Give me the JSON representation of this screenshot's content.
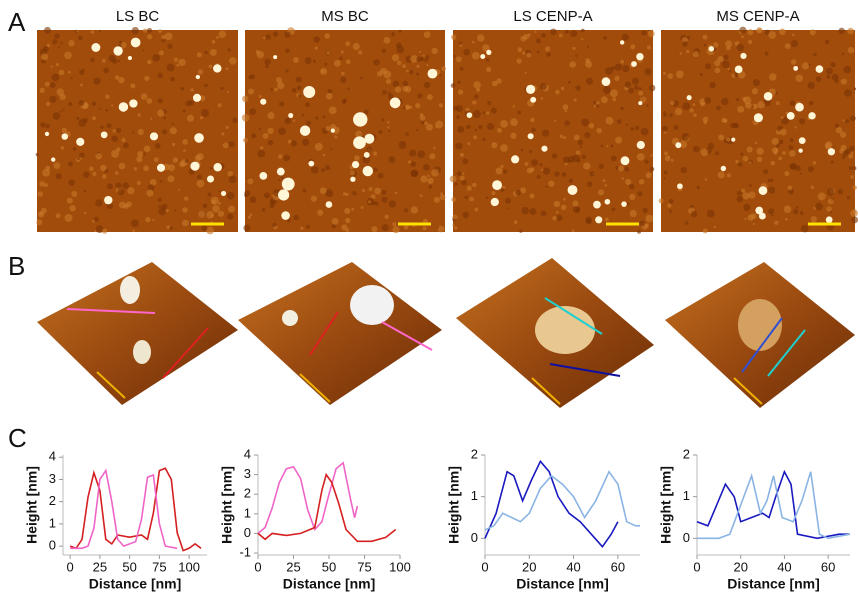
{
  "panel_labels": [
    "A",
    "B",
    "C"
  ],
  "image_titles": [
    "LS BC",
    "MS BC",
    "LS CENP-A",
    "MS CENP-A"
  ],
  "chart_data": [
    {
      "type": "line",
      "xlabel": "Distance [nm]",
      "ylabel": "Height [nm]",
      "xlim": [
        -6,
        115
      ],
      "ylim": [
        -0.4,
        4.1
      ],
      "xticks": [
        0,
        25,
        50,
        75,
        100
      ],
      "yticks": [
        0,
        1,
        2,
        3,
        4
      ],
      "series": [
        {
          "color": "#d42020",
          "x": [
            0,
            5,
            10,
            15,
            20,
            25,
            30,
            35,
            40,
            50,
            60,
            65,
            70,
            75,
            80,
            85,
            90,
            95,
            100,
            105,
            110
          ],
          "values": [
            0,
            -0.1,
            0.3,
            2.2,
            3.3,
            2.5,
            0.3,
            0.1,
            0.5,
            0.4,
            0.5,
            0.3,
            1.5,
            3.4,
            3.5,
            3.0,
            0.6,
            -0.2,
            -0.1,
            0.1,
            -0.1
          ]
        },
        {
          "color": "#f064c8",
          "x": [
            0,
            10,
            15,
            20,
            25,
            30,
            35,
            40,
            45,
            50,
            55,
            60,
            65,
            70,
            75,
            80,
            90
          ],
          "values": [
            -0.1,
            -0.1,
            0,
            0.8,
            3.0,
            3.4,
            2.0,
            0.3,
            0,
            0.1,
            0.2,
            1.2,
            3.1,
            3.2,
            1.0,
            0,
            -0.1
          ]
        }
      ]
    },
    {
      "type": "line",
      "xlabel": "Distance [nm]",
      "ylabel": "Height [nm]",
      "xlim": [
        0,
        100
      ],
      "ylim": [
        -1.1,
        4
      ],
      "xticks": [
        0,
        25,
        50,
        75,
        100
      ],
      "yticks": [
        -1,
        0,
        1,
        2,
        3,
        4
      ],
      "series": [
        {
          "color": "#f064c8",
          "x": [
            0,
            5,
            10,
            15,
            20,
            25,
            30,
            35,
            40,
            45,
            50,
            55,
            60,
            65,
            68,
            70
          ],
          "values": [
            0,
            0.3,
            1.3,
            2.6,
            3.3,
            3.4,
            2.8,
            1.2,
            0.2,
            0.6,
            2.0,
            3.3,
            3.6,
            1.8,
            0.8,
            1.4
          ]
        },
        {
          "color": "#d42020",
          "x": [
            0,
            5,
            10,
            20,
            30,
            40,
            45,
            48,
            52,
            57,
            62,
            70,
            80,
            90,
            97
          ],
          "values": [
            0,
            -0.3,
            0,
            -0.1,
            0,
            0.3,
            2.2,
            3.0,
            2.6,
            1.5,
            0.2,
            -0.4,
            -0.4,
            -0.2,
            0.2
          ]
        }
      ]
    },
    {
      "type": "line",
      "xlabel": "Distance [nm]",
      "ylabel": "Height [nm]",
      "xlim": [
        0,
        70
      ],
      "ylim": [
        -0.4,
        2
      ],
      "xticks": [
        0,
        20,
        40,
        60
      ],
      "yticks": [
        0,
        1,
        2
      ],
      "series": [
        {
          "color": "#1a1ac0",
          "x": [
            0,
            5,
            10,
            13,
            17,
            21,
            25,
            29,
            33,
            38,
            43,
            48,
            53,
            57,
            60
          ],
          "values": [
            0,
            0.6,
            1.6,
            1.5,
            0.9,
            1.4,
            1.85,
            1.6,
            1.0,
            0.6,
            0.4,
            0.1,
            -0.2,
            0.1,
            0.4
          ]
        },
        {
          "color": "#8ab4e4",
          "x": [
            0,
            4,
            8,
            12,
            16,
            20,
            25,
            30,
            35,
            40,
            45,
            50,
            56,
            60,
            64,
            68,
            70
          ],
          "values": [
            0.2,
            0.3,
            0.6,
            0.5,
            0.4,
            0.6,
            1.2,
            1.5,
            1.3,
            1.0,
            0.5,
            0.9,
            1.6,
            1.3,
            0.4,
            0.3,
            0.3
          ]
        }
      ]
    },
    {
      "type": "line",
      "xlabel": "Distance [nm]",
      "ylabel": "Height [nm]",
      "xlim": [
        0,
        70
      ],
      "ylim": [
        -0.4,
        2
      ],
      "xticks": [
        0,
        20,
        40,
        60
      ],
      "yticks": [
        0,
        1,
        2
      ],
      "series": [
        {
          "color": "#1a1ac0",
          "x": [
            0,
            5,
            9,
            13,
            17,
            20,
            25,
            30,
            33,
            36,
            40,
            43,
            46,
            55,
            65,
            70
          ],
          "values": [
            0.4,
            0.3,
            0.8,
            1.3,
            1.0,
            0.4,
            0.5,
            0.6,
            0.5,
            1.0,
            1.6,
            1.3,
            0.1,
            0,
            0.1,
            0.1
          ]
        },
        {
          "color": "#8ab4e4",
          "x": [
            0,
            10,
            15,
            20,
            25,
            29,
            32,
            35,
            39,
            44,
            48,
            52,
            56,
            60,
            70
          ],
          "values": [
            0,
            0,
            0.1,
            0.8,
            1.5,
            0.6,
            0.9,
            1.5,
            0.5,
            0.4,
            0.9,
            1.6,
            0.1,
            0,
            0.1
          ]
        }
      ]
    }
  ]
}
